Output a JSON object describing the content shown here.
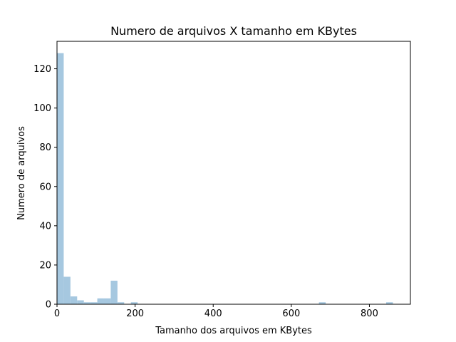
{
  "chart_data": {
    "type": "bar",
    "title": "Numero de arquivos X tamanho em KBytes",
    "xlabel": "Tamanho dos arquivos em KBytes",
    "ylabel": "Numero de arquivos",
    "xlim": [
      0,
      905
    ],
    "ylim": [
      0,
      134
    ],
    "xticks": [
      "0",
      "200",
      "400",
      "600",
      "800"
    ],
    "yticks": [
      "0",
      "20",
      "40",
      "60",
      "80",
      "100",
      "120"
    ],
    "xtick_values": [
      0,
      200,
      400,
      600,
      800
    ],
    "ytick_values": [
      0,
      20,
      40,
      60,
      80,
      100,
      120
    ],
    "bin_width": 17.2,
    "bin_starts": [
      0,
      17.2,
      34.4,
      51.6,
      68.8,
      86.0,
      103.2,
      120.4,
      137.6,
      154.8,
      189.2,
      670.8,
      843.0
    ],
    "values": [
      128,
      14,
      4,
      2,
      1,
      1,
      3,
      3,
      12,
      1,
      1,
      1,
      1
    ],
    "bar_color": "#a6c8e0",
    "grid": false
  }
}
